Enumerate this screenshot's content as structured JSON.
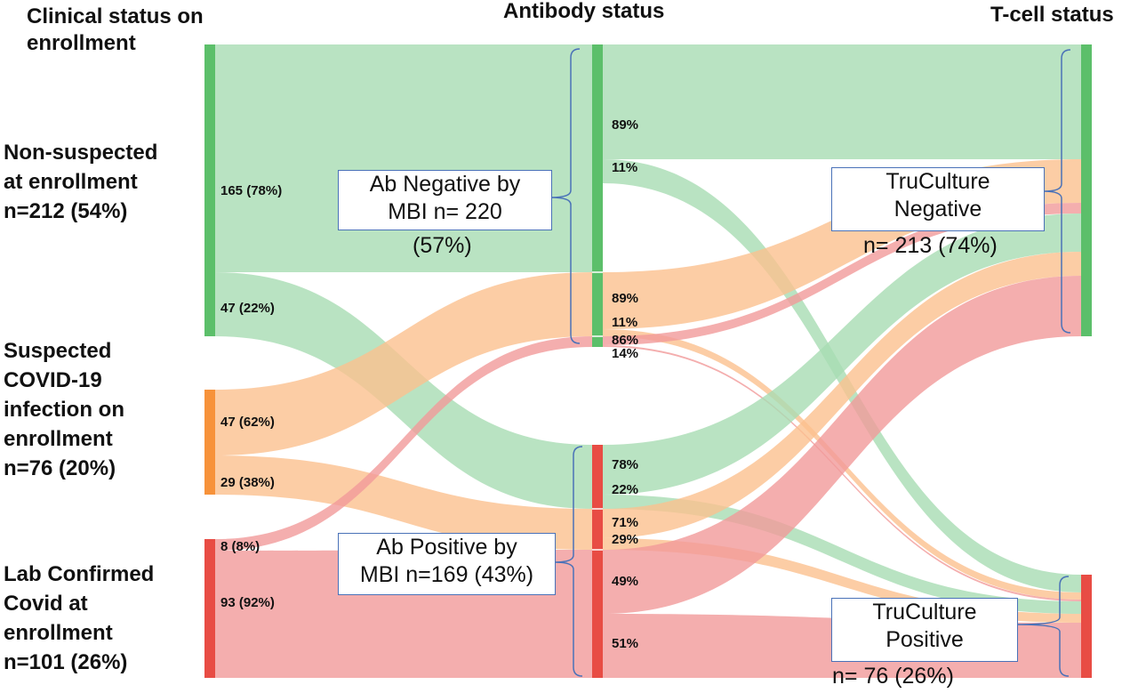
{
  "headers": {
    "clinical": "Clinical status on enrollment",
    "antibody": "Antibody status",
    "tcell": "T-cell status"
  },
  "categories": [
    {
      "label": "Non-suspected at enrollment n=212 (54%)",
      "lines": [
        "Non-suspected",
        "at enrollment",
        "n=212 (54%)"
      ],
      "color": "#5cbf6a"
    },
    {
      "label": "Suspected COVID-19 infection on enrollment n=76 (20%)",
      "lines": [
        "Suspected",
        "COVID-19",
        "infection on",
        "enrollment",
        "n=76 (20%)"
      ],
      "color": "#f7923a"
    },
    {
      "label": "Lab Confirmed Covid at enrollment n=101 (26%)",
      "lines": [
        "Lab Confirmed",
        "Covid at",
        "enrollment",
        "n=101 (26%)"
      ],
      "color": "#e84c44"
    }
  ],
  "left_flows": [
    "165 (78%)",
    "47 (22%)",
    "47 (62%)",
    "29 (38%)",
    "8 (8%)",
    "93 (92%)"
  ],
  "mid_flows": [
    "89%",
    "11%",
    "89%",
    "11%",
    "86%",
    "14%",
    "78%",
    "22%",
    "71%",
    "29%",
    "49%",
    "51%"
  ],
  "antibody_nodes": [
    {
      "lines": [
        "Ab Negative by",
        "MBI n= 220"
      ],
      "extra": "(57%)",
      "color": "#5cbf6a"
    },
    {
      "lines": [
        "Ab Positive by",
        "MBI n=169 (43%)"
      ],
      "color": "#e84c44"
    }
  ],
  "tcell_nodes": [
    {
      "lines": [
        "TruCulture",
        "Negative"
      ],
      "extra": "n= 213 (74%)",
      "color": "#5cbf6a"
    },
    {
      "lines": [
        "TruCulture",
        "Positive"
      ],
      "extra": "n= 76 (26%)",
      "color": "#e84c44"
    }
  ],
  "ribbon_colors": {
    "green": "#a8dcb3",
    "orange": "#fbc08f",
    "red": "#f19a9a"
  },
  "bracket_color": "#4a72b8"
}
